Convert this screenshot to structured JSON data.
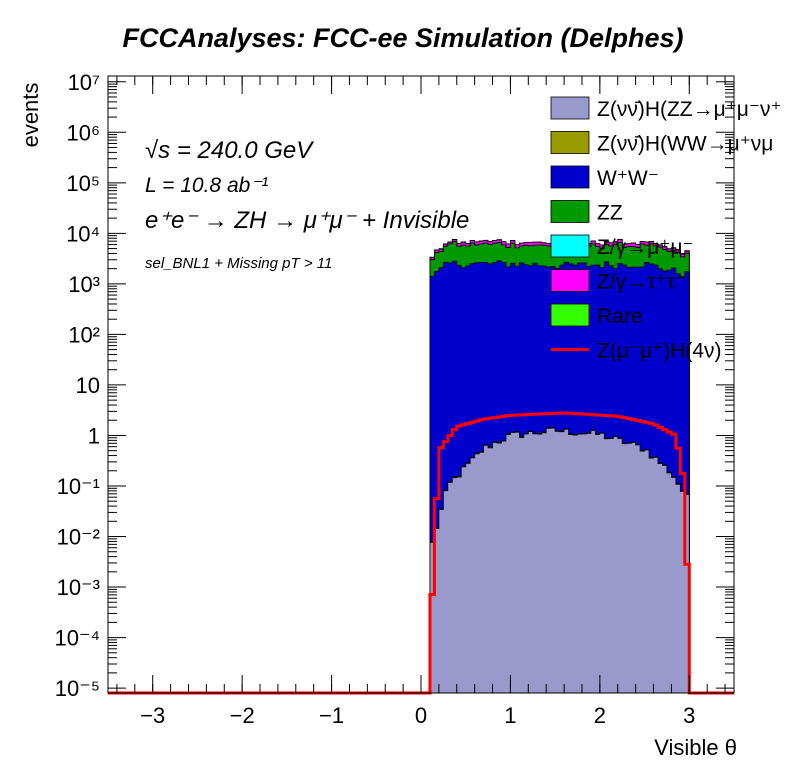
{
  "chart_data": {
    "type": "area",
    "stacked": true,
    "title": "FCCAnalyses: FCC-ee Simulation (Delphes)",
    "xlabel": "Visible θ",
    "ylabel": "events",
    "xlim": [
      -3.5,
      3.5
    ],
    "ylim": [
      8e-06,
      13000000.0
    ],
    "yscale": "log",
    "grid": false,
    "legend_position": "top-right",
    "x_ticks": [
      "−3",
      "−2",
      "−1",
      "0",
      "1",
      "2",
      "3"
    ],
    "y_ticks": [
      "10⁻⁵",
      "10⁻⁴",
      "10⁻³",
      "10⁻²",
      "10⁻¹",
      "1",
      "10",
      "10²",
      "10³",
      "10⁴",
      "10⁵",
      "10⁶",
      "10⁷"
    ],
    "filled_range": [
      0.1,
      3.0
    ],
    "annotations": {
      "sqrt_s": "√s = 240.0 GeV",
      "lumi": "L = 10.8 ab⁻¹",
      "process": "e⁺e⁻ → ZH → μ⁺μ⁻ + Invisible",
      "selection": "sel_BNL1 + Missing pT > 11"
    },
    "series": [
      {
        "name": "Z(νν̄)H(ZZ→μ⁺μ⁻ν⁺ν⁻)",
        "legend_label": "Z(νν̄)H(ZZ→μ⁺μ⁻ν⁺",
        "color": "#9999cc",
        "anchors": [
          [
            0.1,
            0.005
          ],
          [
            0.3,
            0.1
          ],
          [
            0.7,
            0.55
          ],
          [
            1.0,
            1.0
          ],
          [
            1.5,
            1.25
          ],
          [
            2.0,
            1.05
          ],
          [
            2.5,
            0.55
          ],
          [
            2.8,
            0.18
          ],
          [
            3.0,
            0.05
          ]
        ]
      },
      {
        "name": "Z(νν̄)H(WW→μ⁺νμ⁻ν)",
        "legend_label": "Z(νν̄)H(WW→μ⁺νμ",
        "color": "#999900",
        "anchors": [
          [
            0.1,
            0.0002
          ],
          [
            0.3,
            0.004
          ],
          [
            0.7,
            0.02
          ],
          [
            1.0,
            0.03
          ],
          [
            1.5,
            0.035
          ],
          [
            2.0,
            0.025
          ],
          [
            2.5,
            0.015
          ],
          [
            2.8,
            0.006
          ],
          [
            3.0,
            0.002
          ]
        ]
      },
      {
        "name": "W⁺W⁻",
        "legend_label": "W⁺W⁻",
        "color": "#0000cc",
        "anchors": [
          [
            0.1,
            1200
          ],
          [
            0.3,
            2500
          ],
          [
            1.0,
            2500
          ],
          [
            1.6,
            2300
          ],
          [
            2.5,
            2500
          ],
          [
            3.0,
            1500
          ]
        ]
      },
      {
        "name": "ZZ",
        "legend_label": "ZZ",
        "color": "#009900",
        "anchors": [
          [
            0.1,
            1500
          ],
          [
            0.3,
            3500
          ],
          [
            1.0,
            3500
          ],
          [
            1.6,
            3300
          ],
          [
            2.5,
            3500
          ],
          [
            3.0,
            2000
          ]
        ]
      },
      {
        "name": "Z/γ→μ⁺μ⁻",
        "legend_label": "Z/γ→μ⁺μ⁻",
        "color": "#00ffff",
        "anchors": [
          [
            0.1,
            30
          ],
          [
            0.4,
            8
          ],
          [
            0.8,
            4
          ],
          [
            1.2,
            3
          ],
          [
            1.6,
            3
          ],
          [
            2.0,
            3
          ],
          [
            2.4,
            4
          ],
          [
            2.8,
            9
          ],
          [
            3.0,
            25
          ]
        ]
      },
      {
        "name": "Z/γ→τ⁺τ⁻",
        "legend_label": "Z/γ→τ⁺τ⁻",
        "color": "#ff00ff",
        "anchors": [
          [
            0.1,
            300
          ],
          [
            0.4,
            700
          ],
          [
            1.0,
            900
          ],
          [
            1.6,
            800
          ],
          [
            2.4,
            900
          ],
          [
            3.0,
            350
          ]
        ]
      },
      {
        "name": "Rare",
        "legend_label": "Rare",
        "color": "#33ff00",
        "anchors": [
          [
            0.1,
            100
          ],
          [
            0.4,
            80
          ],
          [
            0.8,
            40
          ],
          [
            1.2,
            30
          ],
          [
            1.6,
            28
          ],
          [
            2.0,
            30
          ],
          [
            2.4,
            40
          ],
          [
            2.8,
            80
          ],
          [
            3.0,
            100
          ]
        ]
      }
    ],
    "signal": {
      "name": "Z(μ⁻μ⁺)H(4ν)",
      "legend_label": "Z(μ⁻μ⁺)H(4ν)",
      "color": "#ff0000",
      "anchors": [
        [
          0.1,
          8e-05
        ],
        [
          0.2,
          0.5
        ],
        [
          0.4,
          1.5
        ],
        [
          0.7,
          2.1
        ],
        [
          1.0,
          2.5
        ],
        [
          1.6,
          2.8
        ],
        [
          2.2,
          2.4
        ],
        [
          2.6,
          1.7
        ],
        [
          2.85,
          1.0
        ],
        [
          2.95,
          0.1
        ],
        [
          3.0,
          8e-05
        ]
      ]
    }
  }
}
